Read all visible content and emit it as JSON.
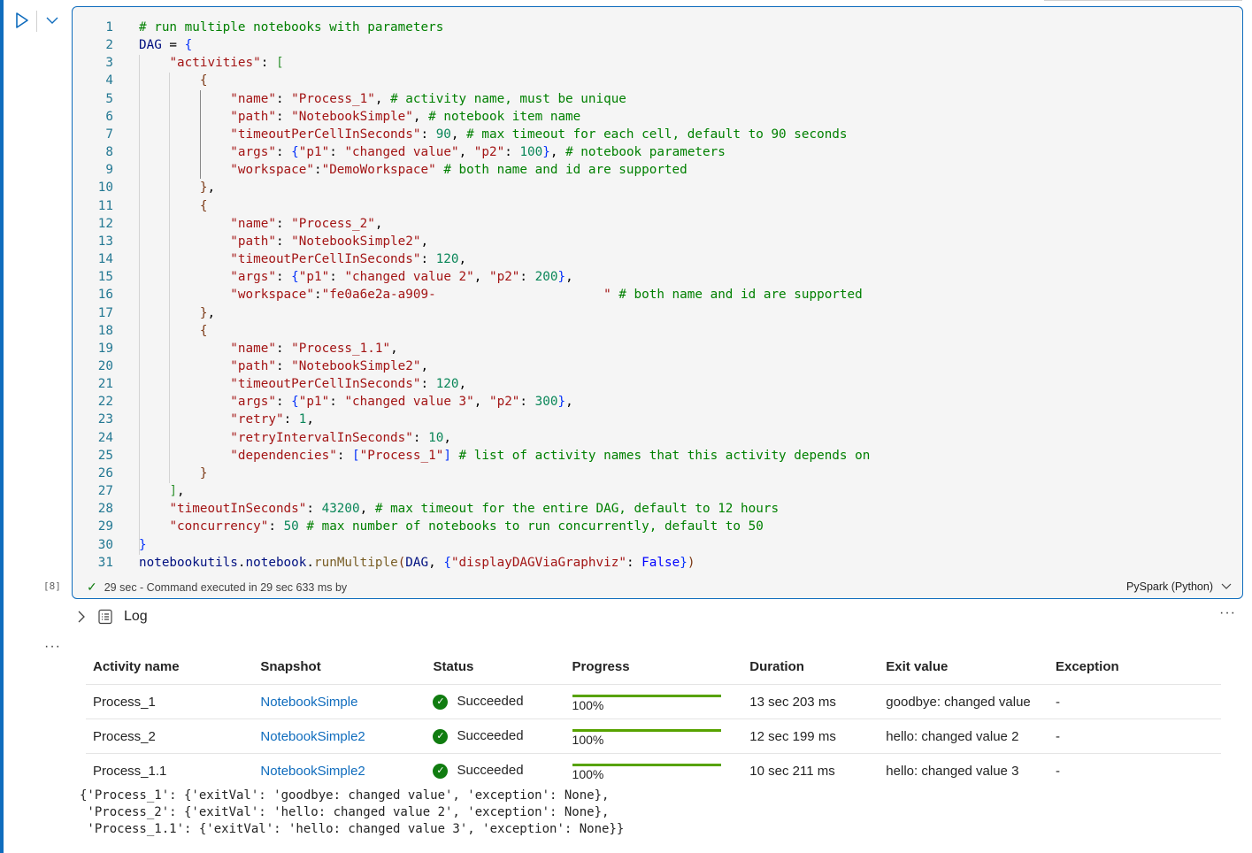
{
  "cell": {
    "execution_count": "[8]",
    "status_text": "29 sec - Command executed in 29 sec 633 ms by",
    "language": "PySpark (Python)",
    "code_lines": [
      [
        [
          "c",
          "# run multiple notebooks with parameters"
        ]
      ],
      [
        [
          "v",
          "DAG"
        ],
        [
          "p",
          " = "
        ],
        [
          "b",
          "{"
        ]
      ],
      [
        [
          "p",
          "    "
        ],
        [
          "s",
          "\"activities\""
        ],
        [
          "p",
          ": "
        ],
        [
          "g",
          "["
        ]
      ],
      [
        [
          "p",
          "        "
        ],
        [
          "o",
          "{"
        ]
      ],
      [
        [
          "p",
          "            "
        ],
        [
          "s",
          "\"name\""
        ],
        [
          "p",
          ": "
        ],
        [
          "s",
          "\"Process_1\""
        ],
        [
          "p",
          ", "
        ],
        [
          "c",
          "# activity name, must be unique"
        ]
      ],
      [
        [
          "p",
          "            "
        ],
        [
          "s",
          "\"path\""
        ],
        [
          "p",
          ": "
        ],
        [
          "s",
          "\"NotebookSimple\""
        ],
        [
          "p",
          ", "
        ],
        [
          "c",
          "# notebook item name"
        ]
      ],
      [
        [
          "p",
          "            "
        ],
        [
          "s",
          "\"timeoutPerCellInSeconds\""
        ],
        [
          "p",
          ": "
        ],
        [
          "n",
          "90"
        ],
        [
          "p",
          ", "
        ],
        [
          "c",
          "# max timeout for each cell, default to 90 seconds"
        ]
      ],
      [
        [
          "p",
          "            "
        ],
        [
          "s",
          "\"args\""
        ],
        [
          "p",
          ": "
        ],
        [
          "b",
          "{"
        ],
        [
          "s",
          "\"p1\""
        ],
        [
          "p",
          ": "
        ],
        [
          "s",
          "\"changed value\""
        ],
        [
          "p",
          ", "
        ],
        [
          "s",
          "\"p2\""
        ],
        [
          "p",
          ": "
        ],
        [
          "n",
          "100"
        ],
        [
          "b",
          "}"
        ],
        [
          "p",
          ", "
        ],
        [
          "c",
          "# notebook parameters"
        ]
      ],
      [
        [
          "p",
          "            "
        ],
        [
          "s",
          "\"workspace\""
        ],
        [
          "p",
          ":"
        ],
        [
          "s",
          "\"DemoWorkspace\""
        ],
        [
          "p",
          " "
        ],
        [
          "c",
          "# both name and id are supported"
        ]
      ],
      [
        [
          "p",
          "        "
        ],
        [
          "o",
          "}"
        ],
        [
          "p",
          ","
        ]
      ],
      [
        [
          "p",
          "        "
        ],
        [
          "o",
          "{"
        ]
      ],
      [
        [
          "p",
          "            "
        ],
        [
          "s",
          "\"name\""
        ],
        [
          "p",
          ": "
        ],
        [
          "s",
          "\"Process_2\""
        ],
        [
          "p",
          ","
        ]
      ],
      [
        [
          "p",
          "            "
        ],
        [
          "s",
          "\"path\""
        ],
        [
          "p",
          ": "
        ],
        [
          "s",
          "\"NotebookSimple2\""
        ],
        [
          "p",
          ","
        ]
      ],
      [
        [
          "p",
          "            "
        ],
        [
          "s",
          "\"timeoutPerCellInSeconds\""
        ],
        [
          "p",
          ": "
        ],
        [
          "n",
          "120"
        ],
        [
          "p",
          ","
        ]
      ],
      [
        [
          "p",
          "            "
        ],
        [
          "s",
          "\"args\""
        ],
        [
          "p",
          ": "
        ],
        [
          "b",
          "{"
        ],
        [
          "s",
          "\"p1\""
        ],
        [
          "p",
          ": "
        ],
        [
          "s",
          "\"changed value 2\""
        ],
        [
          "p",
          ", "
        ],
        [
          "s",
          "\"p2\""
        ],
        [
          "p",
          ": "
        ],
        [
          "n",
          "200"
        ],
        [
          "b",
          "}"
        ],
        [
          "p",
          ","
        ]
      ],
      [
        [
          "p",
          "            "
        ],
        [
          "s",
          "\"workspace\""
        ],
        [
          "p",
          ":"
        ],
        [
          "s",
          "\"fe0a6e2a-a909-                      \""
        ],
        [
          "p",
          " "
        ],
        [
          "c",
          "# both name and id are supported"
        ]
      ],
      [
        [
          "p",
          "        "
        ],
        [
          "o",
          "}"
        ],
        [
          "p",
          ","
        ]
      ],
      [
        [
          "p",
          "        "
        ],
        [
          "o",
          "{"
        ]
      ],
      [
        [
          "p",
          "            "
        ],
        [
          "s",
          "\"name\""
        ],
        [
          "p",
          ": "
        ],
        [
          "s",
          "\"Process_1.1\""
        ],
        [
          "p",
          ","
        ]
      ],
      [
        [
          "p",
          "            "
        ],
        [
          "s",
          "\"path\""
        ],
        [
          "p",
          ": "
        ],
        [
          "s",
          "\"NotebookSimple2\""
        ],
        [
          "p",
          ","
        ]
      ],
      [
        [
          "p",
          "            "
        ],
        [
          "s",
          "\"timeoutPerCellInSeconds\""
        ],
        [
          "p",
          ": "
        ],
        [
          "n",
          "120"
        ],
        [
          "p",
          ","
        ]
      ],
      [
        [
          "p",
          "            "
        ],
        [
          "s",
          "\"args\""
        ],
        [
          "p",
          ": "
        ],
        [
          "b",
          "{"
        ],
        [
          "s",
          "\"p1\""
        ],
        [
          "p",
          ": "
        ],
        [
          "s",
          "\"changed value 3\""
        ],
        [
          "p",
          ", "
        ],
        [
          "s",
          "\"p2\""
        ],
        [
          "p",
          ": "
        ],
        [
          "n",
          "300"
        ],
        [
          "b",
          "}"
        ],
        [
          "p",
          ","
        ]
      ],
      [
        [
          "p",
          "            "
        ],
        [
          "s",
          "\"retry\""
        ],
        [
          "p",
          ": "
        ],
        [
          "n",
          "1"
        ],
        [
          "p",
          ","
        ]
      ],
      [
        [
          "p",
          "            "
        ],
        [
          "s",
          "\"retryIntervalInSeconds\""
        ],
        [
          "p",
          ": "
        ],
        [
          "n",
          "10"
        ],
        [
          "p",
          ","
        ]
      ],
      [
        [
          "p",
          "            "
        ],
        [
          "s",
          "\"dependencies\""
        ],
        [
          "p",
          ": "
        ],
        [
          "b",
          "["
        ],
        [
          "s",
          "\"Process_1\""
        ],
        [
          "b",
          "]"
        ],
        [
          "p",
          " "
        ],
        [
          "c",
          "# list of activity names that this activity depends on"
        ]
      ],
      [
        [
          "p",
          "        "
        ],
        [
          "o",
          "}"
        ]
      ],
      [
        [
          "p",
          "    "
        ],
        [
          "g",
          "]"
        ],
        [
          "p",
          ","
        ]
      ],
      [
        [
          "p",
          "    "
        ],
        [
          "s",
          "\"timeoutInSeconds\""
        ],
        [
          "p",
          ": "
        ],
        [
          "n",
          "43200"
        ],
        [
          "p",
          ", "
        ],
        [
          "c",
          "# max timeout for the entire DAG, default to 12 hours"
        ]
      ],
      [
        [
          "p",
          "    "
        ],
        [
          "s",
          "\"concurrency\""
        ],
        [
          "p",
          ": "
        ],
        [
          "n",
          "50"
        ],
        [
          "p",
          " "
        ],
        [
          "c",
          "# max number of notebooks to run concurrently, default to 50"
        ]
      ],
      [
        [
          "b",
          "}"
        ]
      ],
      [
        [
          "v",
          "notebookutils"
        ],
        [
          "p",
          "."
        ],
        [
          "v",
          "notebook"
        ],
        [
          "p",
          "."
        ],
        [
          "f",
          "runMultiple"
        ],
        [
          "o",
          "("
        ],
        [
          "v",
          "DAG"
        ],
        [
          "p",
          ", "
        ],
        [
          "b",
          "{"
        ],
        [
          "s",
          "\"displayDAGViaGraphviz\""
        ],
        [
          "p",
          ": "
        ],
        [
          "kw",
          "False"
        ],
        [
          "b",
          "}"
        ],
        [
          "o",
          ")"
        ]
      ]
    ]
  },
  "log": {
    "label": "Log",
    "columns": [
      "Activity name",
      "Snapshot",
      "Status",
      "Progress",
      "Duration",
      "Exit value",
      "Exception"
    ],
    "rows": [
      {
        "name": "Process_1",
        "snapshot": "NotebookSimple",
        "status": "Succeeded",
        "progress": "100%",
        "progress_value": 100,
        "duration": "13 sec 203 ms",
        "exit_value": "goodbye: changed value",
        "exception": "-"
      },
      {
        "name": "Process_2",
        "snapshot": "NotebookSimple2",
        "status": "Succeeded",
        "progress": "100%",
        "progress_value": 100,
        "duration": "12 sec 199 ms",
        "exit_value": "hello: changed value 2",
        "exception": "-"
      },
      {
        "name": "Process_1.1",
        "snapshot": "NotebookSimple2",
        "status": "Succeeded",
        "progress": "100%",
        "progress_value": 100,
        "duration": "10 sec 211 ms",
        "exit_value": "hello: changed value 3",
        "exception": "-"
      }
    ]
  },
  "output_lines": [
    "{'Process_1': {'exitVal': 'goodbye: changed value', 'exception': None},",
    " 'Process_2': {'exitVal': 'hello: changed value 2', 'exception': None},",
    " 'Process_1.1': {'exitVal': 'hello: changed value 3', 'exception': None}}"
  ],
  "colors": {
    "accent": "#0f6cbd",
    "success": "#107c10",
    "progress": "#57a300"
  }
}
